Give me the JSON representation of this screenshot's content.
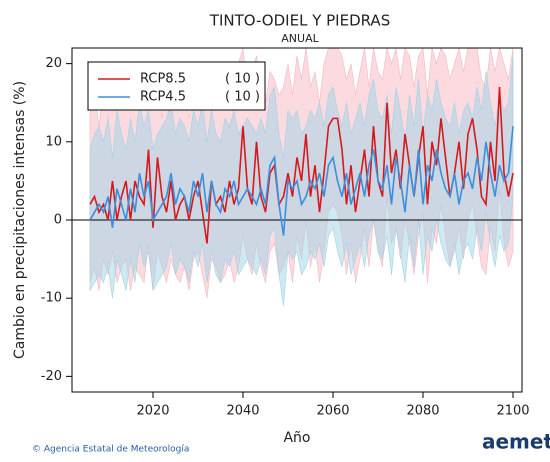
{
  "chart_data": {
    "type": "line_band",
    "title": "TINTO-ODIEL Y PIEDRAS",
    "subtitle": "ANUAL",
    "y_label": "Cambio en precipitaciones intensas (%)",
    "x_label": "Año",
    "x": [
      2006,
      2007,
      2008,
      2009,
      2010,
      2011,
      2012,
      2013,
      2014,
      2015,
      2016,
      2017,
      2018,
      2019,
      2020,
      2021,
      2022,
      2023,
      2024,
      2025,
      2026,
      2027,
      2028,
      2029,
      2030,
      2031,
      2032,
      2033,
      2034,
      2035,
      2036,
      2037,
      2038,
      2039,
      2040,
      2041,
      2042,
      2043,
      2044,
      2045,
      2046,
      2047,
      2048,
      2049,
      2050,
      2051,
      2052,
      2053,
      2054,
      2055,
      2056,
      2057,
      2058,
      2059,
      2060,
      2061,
      2062,
      2063,
      2064,
      2065,
      2066,
      2067,
      2068,
      2069,
      2070,
      2071,
      2072,
      2073,
      2074,
      2075,
      2076,
      2077,
      2078,
      2079,
      2080,
      2081,
      2082,
      2083,
      2084,
      2085,
      2086,
      2087,
      2088,
      2089,
      2090,
      2091,
      2092,
      2093,
      2094,
      2095,
      2096,
      2097,
      2098,
      2099,
      2100
    ],
    "series": [
      {
        "name": "RCP8.5",
        "models_label": "( 10 )",
        "color": "#d7191c",
        "band_color": "#f7b6c2",
        "values": [
          2,
          3,
          1,
          2,
          0,
          5,
          0,
          3,
          5,
          0,
          5,
          3,
          2,
          9,
          -1,
          8,
          3,
          1,
          5,
          0,
          2,
          3,
          0,
          3,
          5,
          1,
          -3,
          5,
          2,
          3,
          1,
          5,
          2,
          4,
          12,
          4,
          2,
          10,
          3,
          1,
          6,
          7,
          2,
          3,
          6,
          3,
          8,
          5,
          11,
          3,
          7,
          1,
          6,
          12,
          13,
          13,
          9,
          2,
          7,
          1,
          5,
          9,
          3,
          12,
          5,
          3,
          15,
          6,
          9,
          4,
          11,
          7,
          3,
          8,
          12,
          2,
          10,
          7,
          13,
          8,
          3,
          6,
          10,
          4,
          11,
          13,
          9,
          3,
          2,
          10,
          5,
          17,
          6,
          3,
          6
        ],
        "band_upper": [
          14,
          16,
          12,
          17,
          13,
          18,
          15,
          20,
          14,
          16,
          17,
          14,
          19,
          15,
          16,
          20,
          13,
          17,
          15,
          18,
          14,
          16,
          13,
          18,
          15,
          17,
          14,
          19,
          16,
          15,
          17,
          18,
          15,
          20,
          22,
          16,
          19,
          21,
          17,
          15,
          19,
          18,
          16,
          17,
          20,
          16,
          21,
          18,
          22,
          17,
          19,
          15,
          20,
          22,
          22,
          22,
          21,
          18,
          20,
          16,
          19,
          22,
          17,
          22,
          19,
          18,
          22,
          20,
          22,
          18,
          22,
          21,
          17,
          21,
          22,
          16,
          22,
          20,
          22,
          21,
          18,
          20,
          22,
          19,
          22,
          22,
          22,
          18,
          17,
          22,
          19,
          22,
          20,
          18,
          22
        ],
        "band_lower": [
          -8,
          -6,
          -9,
          -5,
          -7,
          -4,
          -8,
          -6,
          -5,
          -9,
          -6,
          -7,
          -8,
          -3,
          -9,
          -4,
          -6,
          -8,
          -5,
          -7,
          -8,
          -6,
          -9,
          -5,
          -4,
          -7,
          -10,
          -5,
          -6,
          -8,
          -7,
          -5,
          -8,
          -6,
          -2,
          -5,
          -7,
          -3,
          -6,
          -8,
          -4,
          -3,
          -7,
          -6,
          -4,
          -8,
          -2,
          -5,
          0,
          -6,
          -3,
          -8,
          -4,
          1,
          2,
          1,
          -2,
          -7,
          -3,
          -8,
          -5,
          -1,
          -6,
          0,
          -4,
          -6,
          3,
          -3,
          -1,
          -5,
          0,
          -3,
          -7,
          -2,
          1,
          -8,
          -1,
          -3,
          2,
          -2,
          -6,
          -4,
          -1,
          -5,
          0,
          2,
          -2,
          -6,
          -7,
          -1,
          -4,
          4,
          -3,
          -6,
          -4
        ]
      },
      {
        "name": "RCP4.5",
        "models_label": "( 10 )",
        "color": "#3b8fdc",
        "band_color": "#9fd3e6",
        "values": [
          0,
          1,
          2,
          1,
          3,
          -1,
          4,
          2,
          0,
          4,
          1,
          6,
          3,
          5,
          0,
          1,
          2,
          3,
          6,
          2,
          4,
          3,
          1,
          5,
          3,
          6,
          1,
          5,
          2,
          1,
          4,
          3,
          5,
          2,
          3,
          4,
          3,
          2,
          4,
          2,
          7,
          8,
          2,
          -2,
          5,
          4,
          5,
          2,
          3,
          5,
          4,
          6,
          3,
          7,
          8,
          5,
          3,
          6,
          2,
          4,
          6,
          3,
          7,
          9,
          5,
          4,
          7,
          2,
          8,
          5,
          1,
          7,
          3,
          9,
          2,
          7,
          5,
          9,
          6,
          4,
          3,
          6,
          2,
          5,
          6,
          4,
          8,
          5,
          10,
          6,
          3,
          7,
          5,
          6,
          12
        ],
        "band_upper": [
          9,
          11,
          12,
          10,
          13,
          8,
          14,
          11,
          9,
          13,
          10,
          15,
          12,
          14,
          9,
          11,
          12,
          13,
          15,
          11,
          13,
          12,
          10,
          14,
          12,
          15,
          10,
          14,
          11,
          10,
          13,
          12,
          14,
          11,
          12,
          13,
          12,
          11,
          13,
          11,
          16,
          17,
          11,
          8,
          14,
          13,
          14,
          11,
          12,
          14,
          13,
          15,
          12,
          16,
          17,
          14,
          12,
          15,
          11,
          13,
          15,
          12,
          16,
          18,
          14,
          13,
          16,
          11,
          17,
          14,
          10,
          16,
          12,
          18,
          11,
          16,
          14,
          18,
          15,
          13,
          12,
          15,
          11,
          14,
          15,
          13,
          17,
          14,
          19,
          15,
          12,
          16,
          14,
          15,
          21
        ],
        "band_lower": [
          -9,
          -8,
          -7,
          -8,
          -6,
          -10,
          -5,
          -7,
          -9,
          -5,
          -8,
          -3,
          -6,
          -4,
          -9,
          -8,
          -7,
          -6,
          -3,
          -7,
          -5,
          -6,
          -8,
          -4,
          -6,
          -3,
          -8,
          -4,
          -7,
          -8,
          -5,
          -6,
          -4,
          -7,
          -6,
          -5,
          -6,
          -7,
          -5,
          -7,
          -2,
          -1,
          -7,
          -11,
          -4,
          -5,
          -4,
          -7,
          -6,
          -4,
          -5,
          -3,
          -6,
          -2,
          -1,
          -4,
          -6,
          -3,
          -7,
          -5,
          -3,
          -6,
          -2,
          0,
          -4,
          -5,
          -2,
          -7,
          -1,
          -4,
          -8,
          -2,
          -6,
          0,
          -7,
          -2,
          -4,
          0,
          -3,
          -5,
          -6,
          -3,
          -7,
          -4,
          -3,
          -5,
          -1,
          -4,
          1,
          -3,
          -6,
          -2,
          -4,
          -3,
          3
        ]
      }
    ],
    "xlim": [
      2002,
      2102
    ],
    "ylim": [
      -22,
      22
    ],
    "xticks": [
      2020,
      2040,
      2060,
      2080,
      2100
    ],
    "yticks": [
      -20,
      -10,
      0,
      10,
      20
    ],
    "reference_line": 0,
    "legend": "top-left"
  },
  "footer": {
    "credit": "© Agencia Estatal de Meteorología",
    "logo": "aemet"
  }
}
